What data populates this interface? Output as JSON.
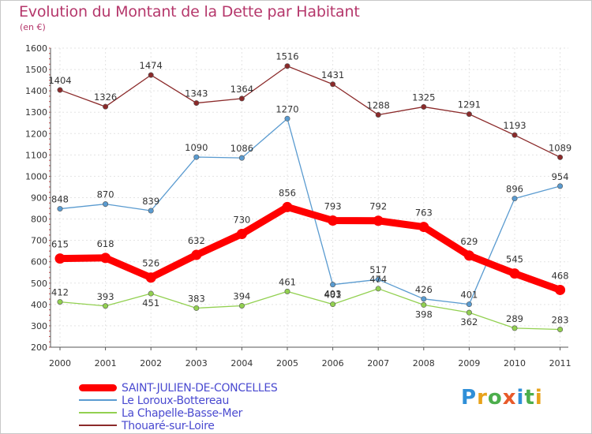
{
  "title": "Evolution du Montant de la Dette par Habitant",
  "unit": "(en €)",
  "logo": [
    "P",
    "r",
    "o",
    "x",
    "i",
    "t",
    "i"
  ],
  "logo_colors": [
    "#2f8fd8",
    "#e8a21a",
    "#4cae4c",
    "#e85a2a",
    "#2f8fd8",
    "#4cae4c",
    "#e8a21a"
  ],
  "chart_data": {
    "type": "line",
    "x": [
      "2000",
      "2001",
      "2002",
      "2003",
      "2004",
      "2005",
      "2006",
      "2007",
      "2008",
      "2009",
      "2010",
      "2011"
    ],
    "ylim": [
      200,
      1600
    ],
    "yticks": [
      200,
      300,
      400,
      500,
      600,
      700,
      800,
      900,
      1000,
      1100,
      1200,
      1300,
      1400,
      1500,
      1600
    ],
    "grid": true,
    "legend_position": "bottom-left",
    "series": [
      {
        "name": "Thouaré-sur-Loire",
        "color": "#8b2a2a",
        "values": [
          1404,
          1326,
          1474,
          1343,
          1364,
          1516,
          1431,
          1288,
          1325,
          1291,
          1193,
          1089
        ]
      },
      {
        "name": "Le Loroux-Bottereau",
        "color": "#5a9bd0",
        "values": [
          848,
          870,
          839,
          1090,
          1086,
          1270,
          493,
          517,
          426,
          401,
          896,
          954
        ]
      },
      {
        "name": "La Chapelle-Basse-Mer",
        "color": "#92d050",
        "values": [
          412,
          393,
          451,
          383,
          394,
          461,
          401,
          474,
          398,
          362,
          289,
          283
        ]
      },
      {
        "name": "SAINT-JULIEN-DE-CONCELLES",
        "color": "#ff0000",
        "values": [
          615,
          618,
          526,
          632,
          730,
          856,
          793,
          792,
          763,
          629,
          545,
          468
        ]
      }
    ]
  },
  "legend": [
    {
      "name": "SAINT-JULIEN-DE-CONCELLES",
      "color": "#ff0000",
      "thickness": 9
    },
    {
      "name": "Le Loroux-Bottereau",
      "color": "#5a9bd0",
      "thickness": 2
    },
    {
      "name": "La Chapelle-Basse-Mer",
      "color": "#92d050",
      "thickness": 2
    },
    {
      "name": "Thouaré-sur-Loire",
      "color": "#8b2a2a",
      "thickness": 2
    }
  ]
}
